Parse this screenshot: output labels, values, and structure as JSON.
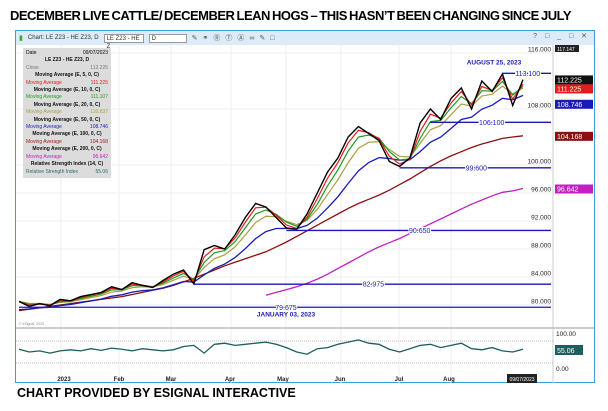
{
  "title": "DECEMBER LIVE CATTLE/ DECEMBER LEAN HOGS –  THIS HASN’T BEEN CHANGING  SINCE JULY",
  "caption": "CHART PROVIDED BY ESIGNAL INTERACTIVE",
  "toolbar": {
    "chart_label": "Chart: LE Z23 - HE Z23, D",
    "symbol_value": "LE Z23 - HE Z",
    "interval_value": "D",
    "window_controls": "? □ _ □ ✕"
  },
  "legend": {
    "date_label": "Date",
    "date": "09/07/2023",
    "symbol": "LE Z23 - HE Z23, D",
    "close_label": "Close",
    "close": "112.225",
    "rows": [
      {
        "title": "Moving Average (E, 5, 0, C)",
        "label": "Moving Average",
        "value": "111.225",
        "color": "#e31b1b"
      },
      {
        "title": "Moving Average (E, 10, 0, C)",
        "label": "Moving Average",
        "value": "111.107",
        "color": "#1f9a1f"
      },
      {
        "title": "Moving Average (E, 20, 0, C)",
        "label": "Moving Average",
        "value": "110.837",
        "color": "#a8a040"
      },
      {
        "title": "Moving Average (E, 50, 0, C)",
        "label": "Moving Average",
        "value": "108.746",
        "color": "#1a1ab8"
      },
      {
        "title": "Moving Average (E, 100, 0, C)",
        "label": "Moving Average",
        "value": "104.168",
        "color": "#a01818"
      },
      {
        "title": "Moving Average (E, 200, 0, C)",
        "label": "Moving Average",
        "value": "96.642",
        "color": "#c020c0"
      }
    ],
    "rsi_title": "Relative Strength Index (14, C)",
    "rsi_label": "Relative Strength Index",
    "rsi_value": "55.06"
  },
  "chart_data": {
    "type": "line",
    "title": "LE Z23 - HE Z23, D",
    "ylim": [
      78,
      117
    ],
    "y_ticks": [
      "116.000",
      "108.000",
      "100.000",
      "96.000",
      "92.000",
      "88.000",
      "84.000",
      "80.000"
    ],
    "y_tick_values": [
      116,
      108,
      100,
      96,
      92,
      88,
      84,
      80
    ],
    "x_ticks": [
      "2023",
      "Feb",
      "Mar",
      "Apr",
      "May",
      "Jun",
      "Jul",
      "Aug"
    ],
    "last_date": "09/07/2023",
    "top_label": "117.147",
    "close": [
      80.5,
      79.8,
      80.2,
      79.9,
      80.8,
      80.6,
      81.2,
      81.5,
      81.8,
      82.6,
      82.2,
      83.2,
      82.8,
      82.5,
      83.5,
      84.4,
      85,
      83,
      87.9,
      88.5,
      88,
      90,
      92.5,
      94.5,
      94,
      92.5,
      91,
      90.8,
      93,
      96,
      99,
      101,
      104,
      105.5,
      104.5,
      103.5,
      100.5,
      99.8,
      101,
      106,
      108,
      106.5,
      109.5,
      111,
      108,
      112,
      110.5,
      113,
      108.5,
      112.2
    ],
    "ma100": [
      79.2,
      79.4,
      79.6,
      79.8,
      80,
      80.2,
      80.4,
      80.6,
      80.8,
      81,
      81.2,
      81.5,
      81.8,
      82.1,
      82.4,
      82.8,
      83.3,
      83.8,
      84.4,
      85,
      85.6,
      86.1,
      86.6,
      87.1,
      87.6,
      88.3,
      89,
      89.8,
      90.6,
      91.4,
      92.2,
      93,
      93.8,
      94.5,
      95.1,
      95.7,
      96.4,
      97.2,
      98,
      98.9,
      99.8,
      100.6,
      101.3,
      101.9,
      102.5,
      103,
      103.4,
      103.8,
      104,
      104.17
    ],
    "ma200_start_index": 24,
    "ma200": [
      81.4,
      81.8,
      82.2,
      82.6,
      83.1,
      83.7,
      84.4,
      85.2,
      86,
      86.8,
      87.6,
      88.3,
      88.9,
      89.5,
      90.2,
      90.9,
      91.6,
      92.3,
      93,
      93.7,
      94.4,
      95,
      95.6,
      96.1,
      96.3,
      96.64
    ],
    "price_lines": [
      {
        "value": 113.1,
        "label": "113.100",
        "start_index": 47
      },
      {
        "value": 106.1,
        "label": "106.100",
        "start_index": 40
      },
      {
        "value": 99.6,
        "label": "99.600",
        "start_index": 37
      },
      {
        "value": 90.65,
        "label": "90.650",
        "start_index": 26
      },
      {
        "value": 82.975,
        "label": "82.975",
        "start_index": 17
      },
      {
        "value": 79.675,
        "label": "79.675",
        "start_index": 0
      }
    ],
    "annotations": [
      "AUGUST 25, 2023",
      "JANUARY 03, 2023"
    ],
    "value_labels": [
      {
        "label": "112.225",
        "value": 112.225,
        "color": "#111111"
      },
      {
        "label": "111.225",
        "value": 111.225,
        "color": "#e31b1b"
      },
      {
        "label": "108.746",
        "value": 108.746,
        "color": "#1a1ab8"
      },
      {
        "label": "104.168",
        "value": 104.168,
        "color": "#8b1010"
      },
      {
        "label": "96.642",
        "value": 96.642,
        "color": "#c020c0"
      }
    ],
    "rsi": {
      "ticks": [
        "100.00",
        "0.00"
      ],
      "last": "55.06",
      "values": [
        55,
        50,
        52,
        48,
        52,
        54,
        52,
        56,
        53,
        57,
        55,
        52,
        56,
        54,
        52,
        54,
        60,
        62,
        48,
        64,
        66,
        62,
        64,
        66,
        68,
        64,
        58,
        50,
        46,
        56,
        58,
        64,
        68,
        72,
        66,
        64,
        55,
        50,
        56,
        62,
        64,
        58,
        62,
        66,
        56,
        54,
        58,
        52,
        50,
        55
      ]
    }
  },
  "credit": "© eSignal, 2023"
}
